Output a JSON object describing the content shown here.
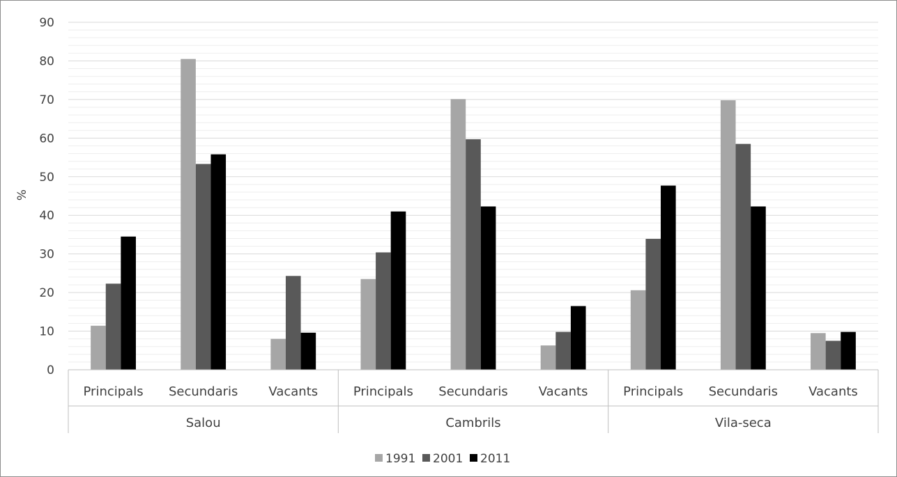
{
  "chart_data": {
    "type": "bar",
    "ylabel": "%",
    "ylim": [
      0,
      90
    ],
    "yticks": [
      "0",
      "10",
      "20",
      "30",
      "40",
      "50",
      "60",
      "70",
      "80",
      "90"
    ],
    "minor_grid_step": 2,
    "groups": [
      "Salou",
      "Cambrils",
      "Vila-seca"
    ],
    "categories": [
      "Principals",
      "Secundaris",
      "Vacants",
      "Principals",
      "Secundaris",
      "Vacants",
      "Principals",
      "Secundaris",
      "Vacants"
    ],
    "series": [
      {
        "name": "1991",
        "color": "#a6a6a6",
        "values": [
          11.4,
          80.5,
          8.0,
          23.5,
          70.1,
          6.3,
          20.6,
          69.8,
          9.5
        ]
      },
      {
        "name": "2001",
        "color": "#595959",
        "values": [
          22.3,
          53.3,
          24.3,
          30.4,
          59.7,
          9.8,
          33.9,
          58.5,
          7.5
        ]
      },
      {
        "name": "2011",
        "color": "#000000",
        "values": [
          34.5,
          55.8,
          9.6,
          41.0,
          42.3,
          16.5,
          47.7,
          42.3,
          9.8
        ]
      }
    ],
    "legend_position": "bottom"
  }
}
